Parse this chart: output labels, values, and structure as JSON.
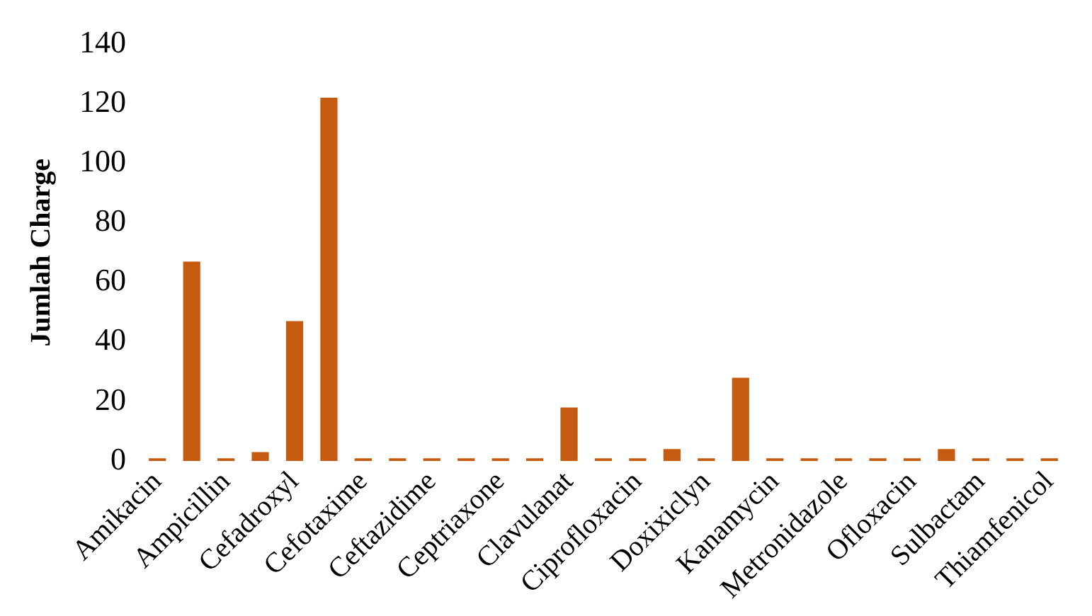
{
  "chart_data": {
    "type": "bar",
    "ylabel": "Jumlah Charge",
    "categories": [
      "Amikacin",
      null,
      "Ampicillin",
      null,
      "Cefadroxyl",
      null,
      "Cefotaxime",
      null,
      "Ceftazidime",
      null,
      "Ceptriaxone",
      null,
      "Clavulanat",
      null,
      "Ciprofloxacin",
      null,
      "Doxixiclyn",
      null,
      "Kanamycin",
      null,
      "Metronidazole",
      null,
      "Ofloxacin",
      null,
      "Sulbactam",
      null,
      "Thiamfenicol"
    ],
    "values": [
      0,
      67,
      0,
      3,
      47,
      122,
      0,
      0,
      0,
      0,
      0,
      0,
      18,
      0,
      0,
      4,
      0,
      28,
      0,
      0,
      0,
      0,
      0,
      4,
      0,
      0,
      0
    ],
    "color": "#c55a11",
    "ylim": [
      0,
      140
    ],
    "yticks": [
      0,
      20,
      40,
      60,
      80,
      100,
      120,
      140
    ],
    "grid": false,
    "legend": false
  }
}
